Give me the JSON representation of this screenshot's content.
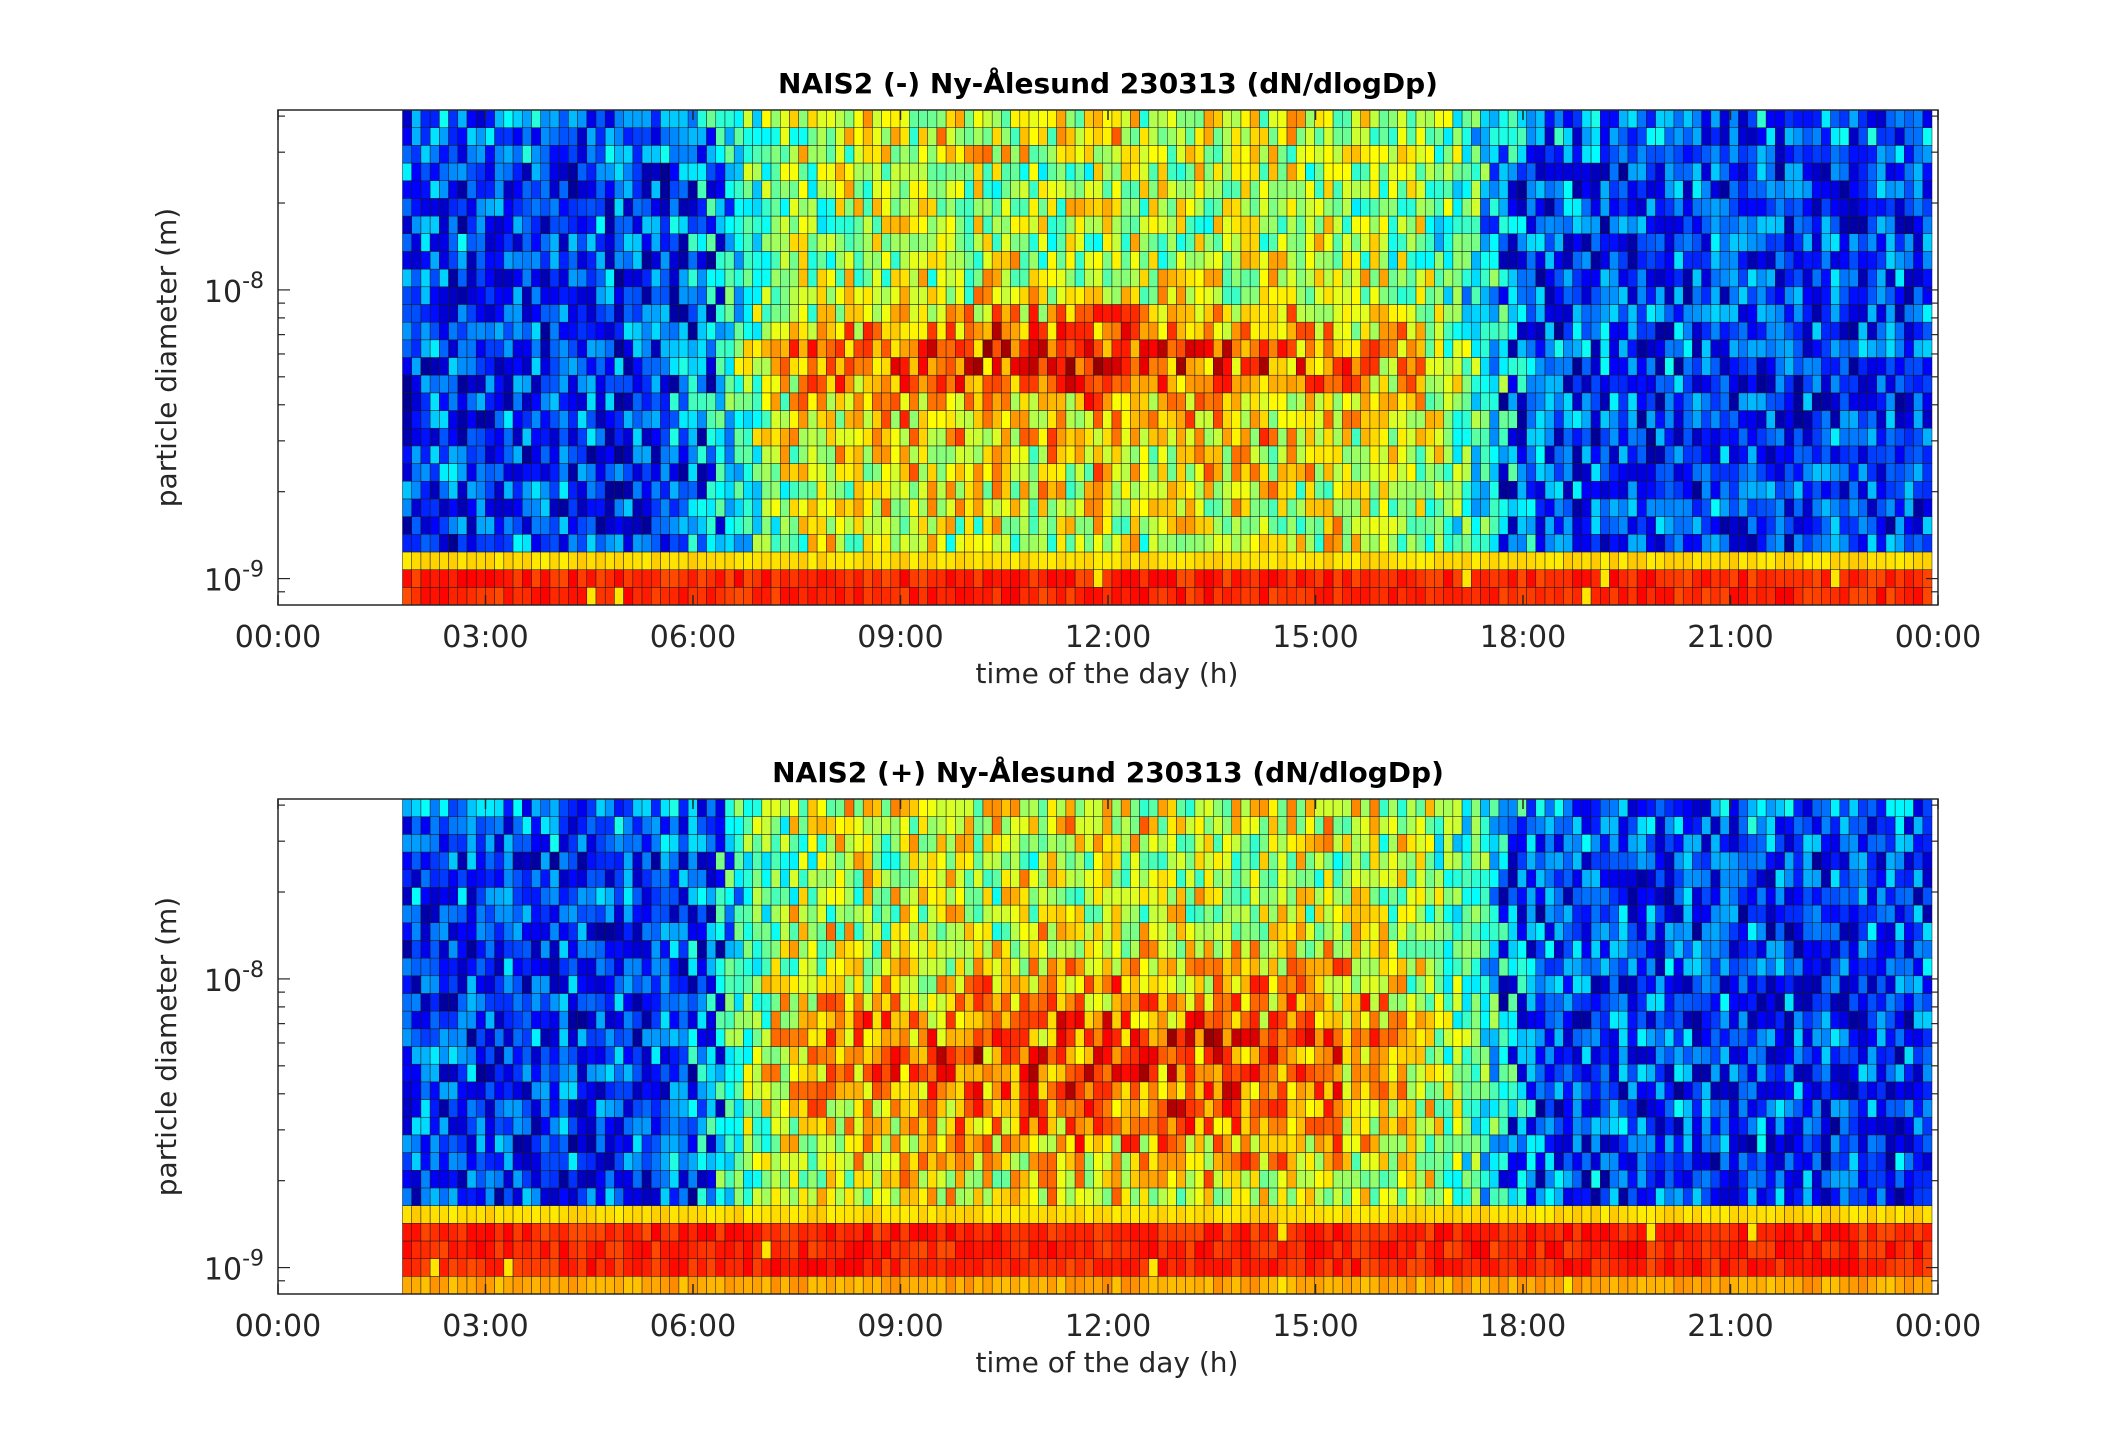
{
  "chart_data": [
    {
      "type": "heatmap",
      "title": "NAIS2 (-) Ny-Ålesund 230313 (dN/dlogDp)",
      "xlabel": "time of the day (h)",
      "ylabel": "particle diameter (m)",
      "x_ticks": [
        "00:00",
        "03:00",
        "06:00",
        "09:00",
        "12:00",
        "15:00",
        "18:00",
        "21:00",
        "00:00"
      ],
      "x_range_hours": [
        0,
        24
      ],
      "data_start_hours": 1.8,
      "y_scale": "log",
      "y_ticks": [
        {
          "base": "10",
          "exp": "-8",
          "value": 1e-08
        },
        {
          "base": "10",
          "exp": "-9",
          "value": 1e-09
        }
      ],
      "y_range_m": [
        8.1e-10,
        4.2e-08
      ],
      "colormap": "jet",
      "pattern": {
        "low_bands_m": [
          8.1e-10,
          1.3e-09
        ],
        "night_low_counts": "blue at 1.5e-9 to 4e-8 before 06:30 and after 17:30",
        "daytime_mode": "yellow-orange, strongest near 5e-9 to 7e-9 around 11:00-13:00"
      }
    },
    {
      "type": "heatmap",
      "title": "NAIS2 (+) Ny-Ålesund 230313 (dN/dlogDp)",
      "xlabel": "time of the day (h)",
      "ylabel": "particle diameter (m)",
      "x_ticks": [
        "00:00",
        "03:00",
        "06:00",
        "09:00",
        "12:00",
        "15:00",
        "18:00",
        "21:00",
        "00:00"
      ],
      "x_range_hours": [
        0,
        24
      ],
      "data_start_hours": 1.8,
      "y_scale": "log",
      "y_ticks": [
        {
          "base": "10",
          "exp": "-8",
          "value": 1e-08
        },
        {
          "base": "10",
          "exp": "-9",
          "value": 1e-09
        }
      ],
      "y_range_m": [
        8.1e-10,
        4.2e-08
      ],
      "colormap": "jet",
      "pattern": {
        "low_bands_m": [
          8.1e-10,
          1.6e-09
        ],
        "night_low_counts": "blue at 2e-9 to 4e-8 before 06:30 and after 17:30",
        "daytime_mode": "orange-red, strongest near 3e-9 to 9e-9 between 07:00 and 17:00, peak at 12:00-13:00"
      }
    }
  ]
}
